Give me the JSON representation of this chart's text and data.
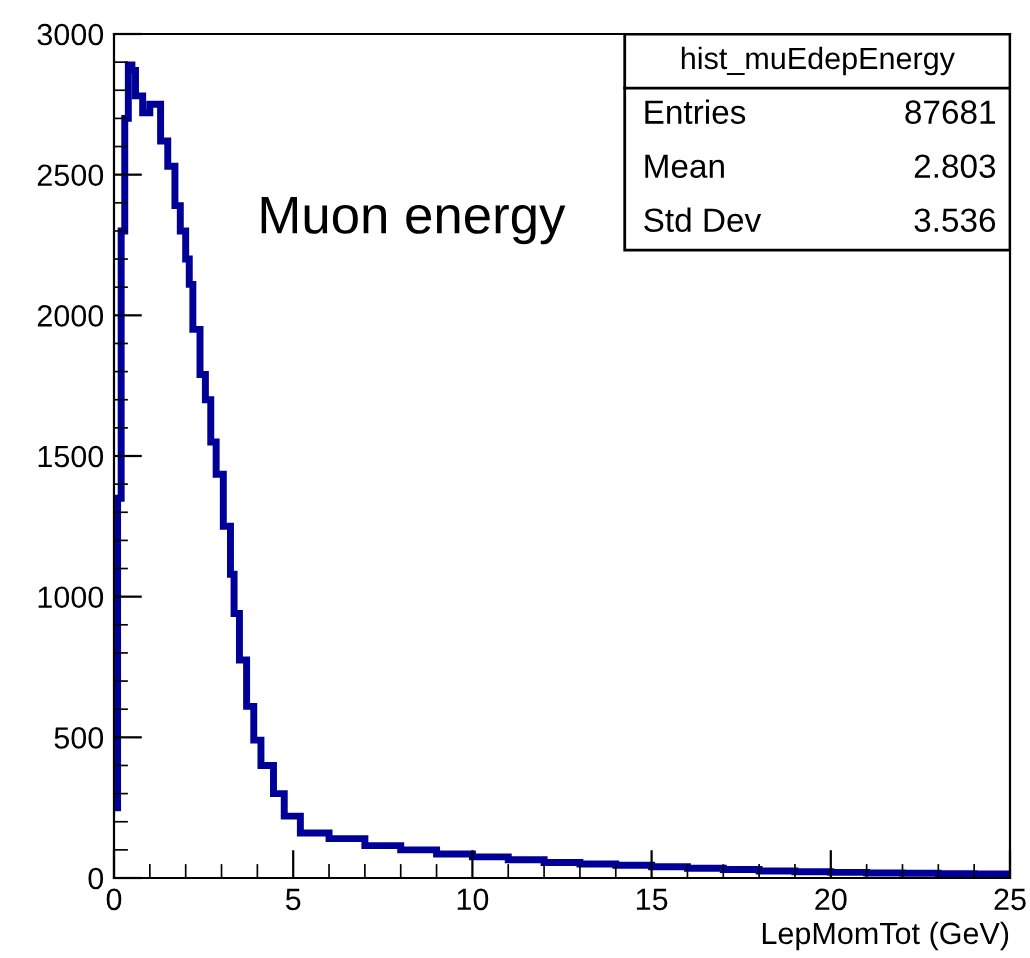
{
  "chart_data": {
    "type": "histogram",
    "xlabel": "LepMomTot (GeV)",
    "bins": [
      0,
      0.1,
      0.2,
      0.3,
      0.4,
      0.5,
      0.6,
      0.8,
      1.0,
      1.3,
      1.5,
      1.7,
      1.85,
      2.0,
      2.1,
      2.2,
      2.4,
      2.55,
      2.7,
      2.85,
      3.05,
      3.25,
      3.35,
      3.5,
      3.7,
      3.9,
      4.1,
      4.45,
      4.75,
      5.2,
      6,
      7,
      8,
      9,
      10,
      11,
      12,
      13,
      14,
      15,
      16,
      17,
      18,
      19,
      20,
      21,
      22,
      23,
      24,
      25
    ],
    "values": [
      250,
      1350,
      2300,
      2700,
      2890,
      2870,
      2780,
      2720,
      2750,
      2620,
      2530,
      2390,
      2300,
      2200,
      2110,
      1950,
      1790,
      1700,
      1550,
      1435,
      1250,
      1080,
      940,
      775,
      610,
      490,
      400,
      300,
      220,
      160,
      140,
      115,
      100,
      85,
      75,
      65,
      55,
      50,
      45,
      40,
      35,
      30,
      25,
      22,
      20,
      18,
      17,
      15,
      14
    ],
    "color": "#000099",
    "xlim": [
      0,
      25
    ],
    "ylim": [
      0,
      3000
    ],
    "xticks": [
      0,
      5,
      10,
      15,
      20,
      25
    ],
    "yticks": [
      0,
      500,
      1000,
      1500,
      2000,
      2500,
      3000
    ],
    "grid": false,
    "annotations": [
      "Muon energy",
      "hist_muEdepEnergy",
      "Entries",
      "87681",
      "Mean",
      "2.803",
      "Std Dev",
      "3.536"
    ]
  }
}
